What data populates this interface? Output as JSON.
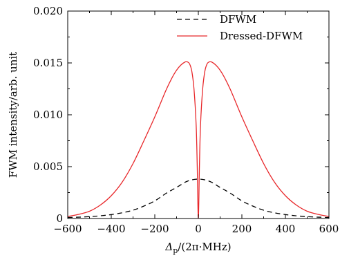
{
  "chart_data": {
    "type": "line",
    "title": "",
    "xlabel": {
      "main": "Δ",
      "sub": "p",
      "rest": "/(2π·MHz)"
    },
    "ylabel": "FWM intensity/arb. unit",
    "xlim": [
      -600,
      600
    ],
    "ylim": [
      0,
      0.02
    ],
    "x_ticks": [
      -600,
      -400,
      -200,
      0,
      200,
      400,
      600
    ],
    "x_tick_labels": [
      "−600",
      "−400",
      "−200",
      "0",
      "200",
      "400",
      "600"
    ],
    "y_ticks": [
      0,
      0.005,
      0.01,
      0.015,
      0.02
    ],
    "y_tick_labels": [
      "0",
      "0.005",
      "0.010",
      "0.015",
      "0.020"
    ],
    "grid": false,
    "legend_position": "top-right",
    "series": [
      {
        "name": "DFWM",
        "color": "#000000",
        "dash": "dashed",
        "x": [
          -600,
          -550,
          -500,
          -450,
          -400,
          -350,
          -300,
          -250,
          -200,
          -150,
          -100,
          -50,
          0,
          50,
          100,
          150,
          200,
          250,
          300,
          350,
          400,
          450,
          500,
          550,
          600
        ],
        "y": [
          0.0001,
          0.00013,
          0.00018,
          0.00026,
          0.00038,
          0.00055,
          0.0008,
          0.0012,
          0.0017,
          0.0024,
          0.003,
          0.0036,
          0.0038,
          0.0036,
          0.003,
          0.0024,
          0.0017,
          0.0012,
          0.0008,
          0.00055,
          0.00038,
          0.00026,
          0.00018,
          0.00013,
          0.0001
        ]
      },
      {
        "name": "Dressed-DFWM",
        "color": "#e8272a",
        "dash": "solid",
        "x": [
          -600,
          -550,
          -500,
          -450,
          -400,
          -350,
          -300,
          -250,
          -200,
          -150,
          -120,
          -100,
          -80,
          -60,
          -50,
          -40,
          -30,
          -20,
          -10,
          -5,
          0,
          5,
          10,
          20,
          30,
          40,
          50,
          60,
          80,
          100,
          120,
          150,
          200,
          250,
          300,
          350,
          400,
          450,
          500,
          550,
          600
        ],
        "y": [
          0.0002,
          0.0004,
          0.0007,
          0.0013,
          0.0022,
          0.0035,
          0.0053,
          0.0075,
          0.0098,
          0.0123,
          0.0136,
          0.0143,
          0.0148,
          0.0151,
          0.0151,
          0.0149,
          0.0142,
          0.0125,
          0.009,
          0.005,
          0.0,
          0.005,
          0.009,
          0.0125,
          0.0142,
          0.0149,
          0.0151,
          0.0151,
          0.0148,
          0.0143,
          0.0136,
          0.0123,
          0.0098,
          0.0075,
          0.0053,
          0.0035,
          0.0022,
          0.0013,
          0.0007,
          0.0004,
          0.0002
        ]
      }
    ]
  }
}
